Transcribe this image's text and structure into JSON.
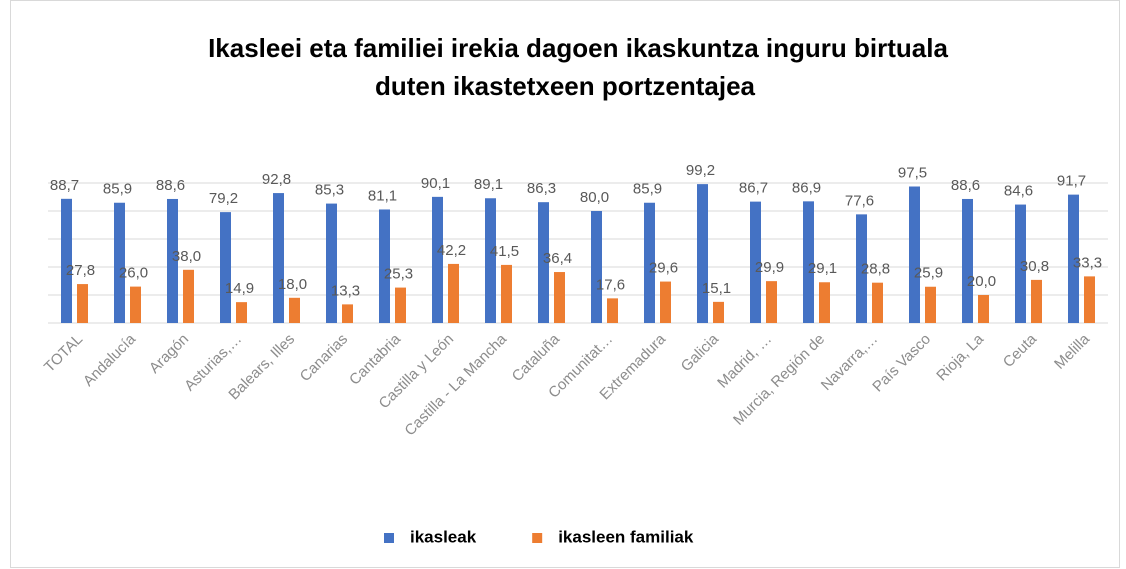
{
  "chart_data": {
    "type": "bar",
    "title": [
      "Ikasleei eta familiei irekia dagoen ikaskuntza inguru birtuala",
      "duten ikastetxeen portzentajea"
    ],
    "categories": [
      "TOTAL",
      "Andalucía",
      "Aragón",
      "Asturias,…",
      "Balears, Illes",
      "Canarias",
      "Cantabria",
      "Castilla y León",
      "Castilla - La Mancha",
      "Cataluña",
      "Comunitat…",
      "Extremadura",
      "Galicia",
      "Madrid, …",
      "Murcia, Región de",
      "Navarra,…",
      "País Vasco",
      "Rioja, La",
      "Ceuta",
      "Melilla"
    ],
    "series": [
      {
        "name": "ikasleak",
        "color": "#4472c4",
        "values": [
          88.7,
          85.9,
          88.6,
          79.2,
          92.8,
          85.3,
          81.1,
          90.1,
          89.1,
          86.3,
          80.0,
          85.9,
          99.2,
          86.7,
          86.9,
          77.6,
          97.5,
          88.6,
          84.6,
          91.7
        ],
        "value_labels": [
          "88,7",
          "85,9",
          "88,6",
          "79,2",
          "92,8",
          "85,3",
          "81,1",
          "90,1",
          "89,1",
          "86,3",
          "80,0",
          "85,9",
          "99,2",
          "86,7",
          "86,9",
          "77,6",
          "97,5",
          "88,6",
          "84,6",
          "91,7"
        ]
      },
      {
        "name": "ikasleen familiak",
        "color": "#ed7d31",
        "values": [
          27.8,
          26.0,
          38.0,
          14.9,
          18.0,
          13.3,
          25.3,
          42.2,
          41.5,
          36.4,
          17.6,
          29.6,
          15.1,
          29.9,
          29.1,
          28.8,
          25.9,
          20.0,
          30.8,
          33.3
        ],
        "value_labels": [
          "27,8",
          "26,0",
          "38,0",
          "14,9",
          "18,0",
          "13,3",
          "25,3",
          "42,2",
          "41,5",
          "36,4",
          "17,6",
          "29,6",
          "15,1",
          "29,9",
          "29,1",
          "28,8",
          "25,9",
          "20,0",
          "30,8",
          "33,3"
        ]
      }
    ],
    "ylim": [
      0,
      100
    ],
    "yticks": [
      0,
      20,
      40,
      60,
      80,
      100
    ],
    "ytick_labels": false,
    "grid": true,
    "legend": "bottom"
  }
}
